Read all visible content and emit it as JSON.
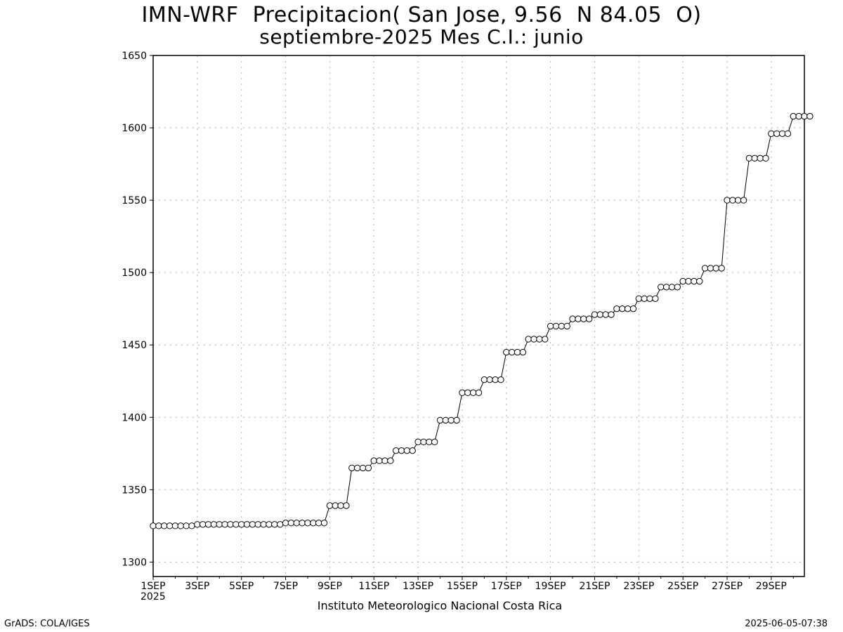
{
  "title_line1": "IMN-WRF  Precipitacion( San Jose, 9.56  N 84.05  O)",
  "title_line2": "septiembre-2025 Mes C.I.: junio",
  "institution": "Instituto Meteorologico Nacional Costa Rica",
  "software": "GrADS: COLA/IGES",
  "timestamp": "2025-06-05-07:38",
  "year_label": "2025",
  "colors": {
    "line": "#000000",
    "marker_fill": "#ffffff",
    "grid": "#b0b0b0",
    "background": "#ffffff"
  },
  "chart_data": {
    "type": "line",
    "ylim": [
      1290,
      1650
    ],
    "xlim_days": [
      1,
      30.5
    ],
    "grid": true,
    "y_ticks": [
      1300,
      1350,
      1400,
      1450,
      1500,
      1550,
      1600,
      1650
    ],
    "x_tick_labels": [
      "1SEP",
      "3SEP",
      "5SEP",
      "7SEP",
      "9SEP",
      "11SEP",
      "13SEP",
      "15SEP",
      "17SEP",
      "19SEP",
      "21SEP",
      "23SEP",
      "25SEP",
      "27SEP",
      "29SEP"
    ],
    "marker": "open-circle",
    "samples_per_day": 4,
    "daily_values": [
      [
        1325,
        1325,
        1325,
        1325
      ],
      [
        1325,
        1325,
        1325,
        1325
      ],
      [
        1326,
        1326,
        1326,
        1326
      ],
      [
        1326,
        1326,
        1326,
        1326
      ],
      [
        1326,
        1326,
        1326,
        1326
      ],
      [
        1326,
        1326,
        1326,
        1326
      ],
      [
        1327,
        1327,
        1327,
        1327
      ],
      [
        1327,
        1327,
        1327,
        1327
      ],
      [
        1339,
        1339,
        1339,
        1339
      ],
      [
        1365,
        1365,
        1365,
        1365
      ],
      [
        1370,
        1370,
        1370,
        1370
      ],
      [
        1377,
        1377,
        1377,
        1377
      ],
      [
        1383,
        1383,
        1383,
        1383
      ],
      [
        1398,
        1398,
        1398,
        1398
      ],
      [
        1417,
        1417,
        1417,
        1417
      ],
      [
        1426,
        1426,
        1426,
        1426
      ],
      [
        1445,
        1445,
        1445,
        1445
      ],
      [
        1454,
        1454,
        1454,
        1454
      ],
      [
        1463,
        1463,
        1463,
        1463
      ],
      [
        1468,
        1468,
        1468,
        1468
      ],
      [
        1471,
        1471,
        1471,
        1471
      ],
      [
        1475,
        1475,
        1475,
        1475
      ],
      [
        1482,
        1482,
        1482,
        1482
      ],
      [
        1490,
        1490,
        1490,
        1490
      ],
      [
        1494,
        1494,
        1494,
        1494
      ],
      [
        1503,
        1503,
        1503,
        1503
      ],
      [
        1550,
        1550,
        1550,
        1550
      ],
      [
        1579,
        1579,
        1579,
        1579
      ],
      [
        1596,
        1596,
        1596,
        1596
      ],
      [
        1608,
        1608,
        1608,
        1608
      ]
    ]
  }
}
